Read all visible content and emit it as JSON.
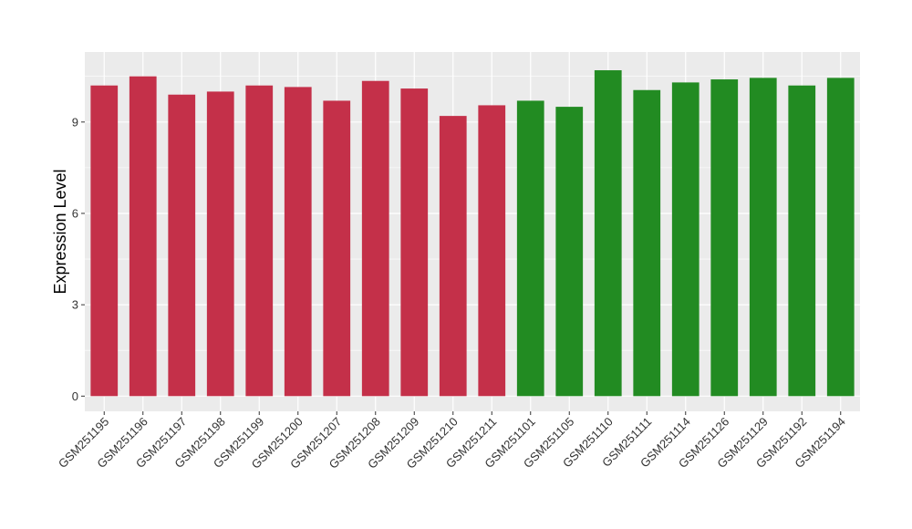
{
  "chart_data": {
    "type": "bar",
    "title": "",
    "xlabel": "",
    "ylabel": "Expression Level",
    "ylim": [
      -0.5,
      11.3
    ],
    "yticks": [
      0,
      3,
      6,
      9
    ],
    "grid": true,
    "colors": {
      "red_group": "#c43049",
      "green_group": "#228b22",
      "panel": "#ebebeb",
      "grid": "#ffffff"
    },
    "categories": [
      "GSM251195",
      "GSM251196",
      "GSM251197",
      "GSM251198",
      "GSM251199",
      "GSM251200",
      "GSM251207",
      "GSM251208",
      "GSM251209",
      "GSM251210",
      "GSM251211",
      "GSM251101",
      "GSM251105",
      "GSM251110",
      "GSM251111",
      "GSM251114",
      "GSM251126",
      "GSM251129",
      "GSM251192",
      "GSM251194"
    ],
    "values": [
      10.2,
      10.5,
      9.9,
      10.0,
      10.2,
      10.15,
      9.7,
      10.35,
      10.1,
      9.2,
      9.55,
      9.7,
      9.5,
      10.7,
      10.05,
      10.3,
      10.4,
      10.45,
      10.2,
      10.45
    ],
    "bar_groups": [
      "red_group",
      "red_group",
      "red_group",
      "red_group",
      "red_group",
      "red_group",
      "red_group",
      "red_group",
      "red_group",
      "red_group",
      "red_group",
      "green_group",
      "green_group",
      "green_group",
      "green_group",
      "green_group",
      "green_group",
      "green_group",
      "green_group",
      "green_group"
    ]
  }
}
